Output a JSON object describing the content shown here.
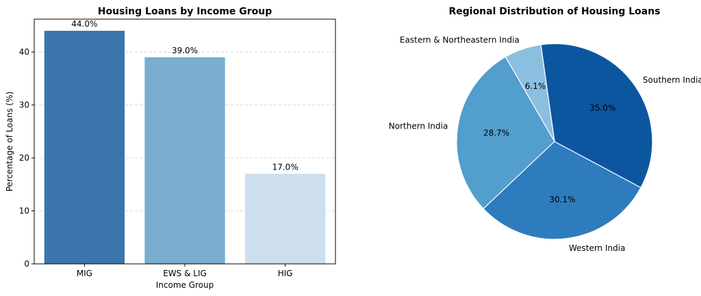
{
  "chart_data": [
    {
      "type": "bar",
      "title": "Housing Loans by Income Group",
      "xlabel": "Income Group",
      "ylabel": "Percentage of Loans (%)",
      "categories": [
        "MIG",
        "EWS & LIG",
        "HIG"
      ],
      "values": [
        44.0,
        39.0,
        17.0
      ],
      "value_labels": [
        "44.0%",
        "39.0%",
        "17.0%"
      ],
      "colors": [
        "#3a76ab",
        "#79aed1",
        "#cddeed"
      ],
      "ylim": [
        0,
        46.2
      ],
      "yticks": [
        0,
        10,
        20,
        30,
        40
      ],
      "grid": "horizontal dashed"
    },
    {
      "type": "pie",
      "title": "Regional Distribution of Housing Loans",
      "labels": [
        "Northern India",
        "Western India",
        "Southern India",
        "Eastern & Northeastern India"
      ],
      "values": [
        28.7,
        30.1,
        35.0,
        6.1
      ],
      "pct_labels": [
        "28.7%",
        "30.1%",
        "35.0%",
        "6.1%"
      ],
      "colors": [
        "#529ecd",
        "#2e7cbd",
        "#0c56a0",
        "#8bbfdf"
      ],
      "start_angle_deg": 120
    }
  ]
}
